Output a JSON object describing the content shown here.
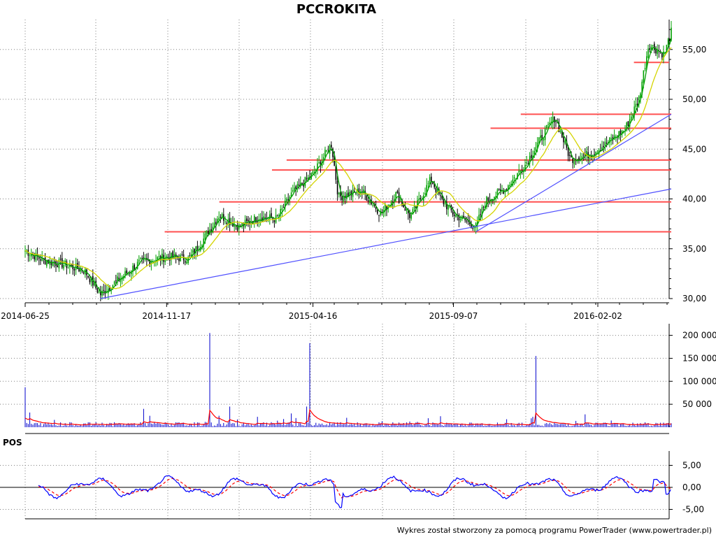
{
  "title": "PCCROKITA",
  "footer": "Wykres został stworzony za pomocą programu PowerTrader (www.powertrader.pl)",
  "colors": {
    "candle_up": "#00a000",
    "candle_down": "#000000",
    "ma_green": "#00a000",
    "ma_yellow": "#d4d400",
    "sr_lines": "#ff5050",
    "trend_lines": "#5050ff",
    "volume_bars": "#0000cc",
    "volume_avg": "#ff0000",
    "pos_line": "#0000ff",
    "pos_signal": "#ff0000",
    "grid": "#808080"
  },
  "chart_data": [
    {
      "type": "candlestick",
      "title": "PCCROKITA",
      "x_ticks": [
        "2014-06-25",
        "2014-11-17",
        "2015-04-16",
        "2015-09-07",
        "2016-02-02"
      ],
      "y_ticks": [
        "30,00",
        "35,00",
        "40,00",
        "45,00",
        "50,00",
        "55,00"
      ],
      "ylim": [
        30,
        58
      ],
      "grid": true,
      "close_path": [
        [
          "2014-06-25",
          34.8
        ],
        [
          "2014-07-15",
          33.8
        ],
        [
          "2014-08-05",
          33.4
        ],
        [
          "2014-08-25",
          32.8
        ],
        [
          "2014-09-10",
          30.4
        ],
        [
          "2014-09-30",
          32.0
        ],
        [
          "2014-10-20",
          33.6
        ],
        [
          "2014-11-17",
          34.2
        ],
        [
          "2014-12-10",
          34.0
        ],
        [
          "2014-12-25",
          36.0
        ],
        [
          "2015-01-10",
          38.4
        ],
        [
          "2015-01-30",
          37.2
        ],
        [
          "2015-02-20",
          38.2
        ],
        [
          "2015-03-10",
          38.0
        ],
        [
          "2015-03-25",
          40.5
        ],
        [
          "2015-04-16",
          42.5
        ],
        [
          "2015-05-05",
          45.5
        ],
        [
          "2015-05-12",
          40.2
        ],
        [
          "2015-06-05",
          40.8
        ],
        [
          "2015-06-25",
          38.5
        ],
        [
          "2015-07-10",
          40.5
        ],
        [
          "2015-07-25",
          38.2
        ],
        [
          "2015-08-15",
          42.0
        ],
        [
          "2015-08-25",
          40.0
        ],
        [
          "2015-09-07",
          38.5
        ],
        [
          "2015-09-30",
          37.2
        ],
        [
          "2015-10-10",
          39.8
        ],
        [
          "2015-10-30",
          41.0
        ],
        [
          "2015-11-20",
          43.5
        ],
        [
          "2015-12-05",
          46.0
        ],
        [
          "2015-12-20",
          48.2
        ],
        [
          "2016-01-05",
          44.0
        ],
        [
          "2016-01-25",
          44.5
        ],
        [
          "2016-02-10",
          45.5
        ],
        [
          "2016-03-01",
          47.0
        ],
        [
          "2016-03-15",
          50.0
        ],
        [
          "2016-03-25",
          55.5
        ],
        [
          "2016-04-10",
          54.5
        ],
        [
          "2016-04-18",
          57.0
        ]
      ],
      "horizontal_levels": [
        36.7,
        39.7,
        42.9,
        43.9,
        47.1,
        48.5,
        53.7
      ],
      "trend_lines": [
        {
          "from": [
            "2014-09-10",
            30.0
          ],
          "to": [
            "2016-04-18",
            41.0
          ]
        },
        {
          "from": [
            "2015-09-30",
            36.7
          ],
          "to": [
            "2016-04-18",
            48.5
          ]
        }
      ]
    },
    {
      "type": "bar",
      "name": "volume",
      "y_ticks": [
        "50 000",
        "100 000",
        "150 000",
        "200 000"
      ],
      "ylim": [
        0,
        210000
      ],
      "peaks": [
        [
          "2014-06-25",
          87000
        ],
        [
          "2014-06-30",
          32000
        ],
        [
          "2014-10-25",
          40000
        ],
        [
          "2014-12-31",
          205000
        ],
        [
          "2015-01-20",
          45000
        ],
        [
          "2015-03-25",
          30000
        ],
        [
          "2015-04-10",
          45000
        ],
        [
          "2015-04-13",
          183000
        ],
        [
          "2015-11-30",
          155000
        ],
        [
          "2016-01-20",
          28000
        ]
      ]
    },
    {
      "type": "line",
      "name": "POS",
      "y_ticks": [
        "-5,00",
        "0,00",
        "5,00"
      ],
      "ylim": [
        -6,
        6
      ]
    }
  ]
}
